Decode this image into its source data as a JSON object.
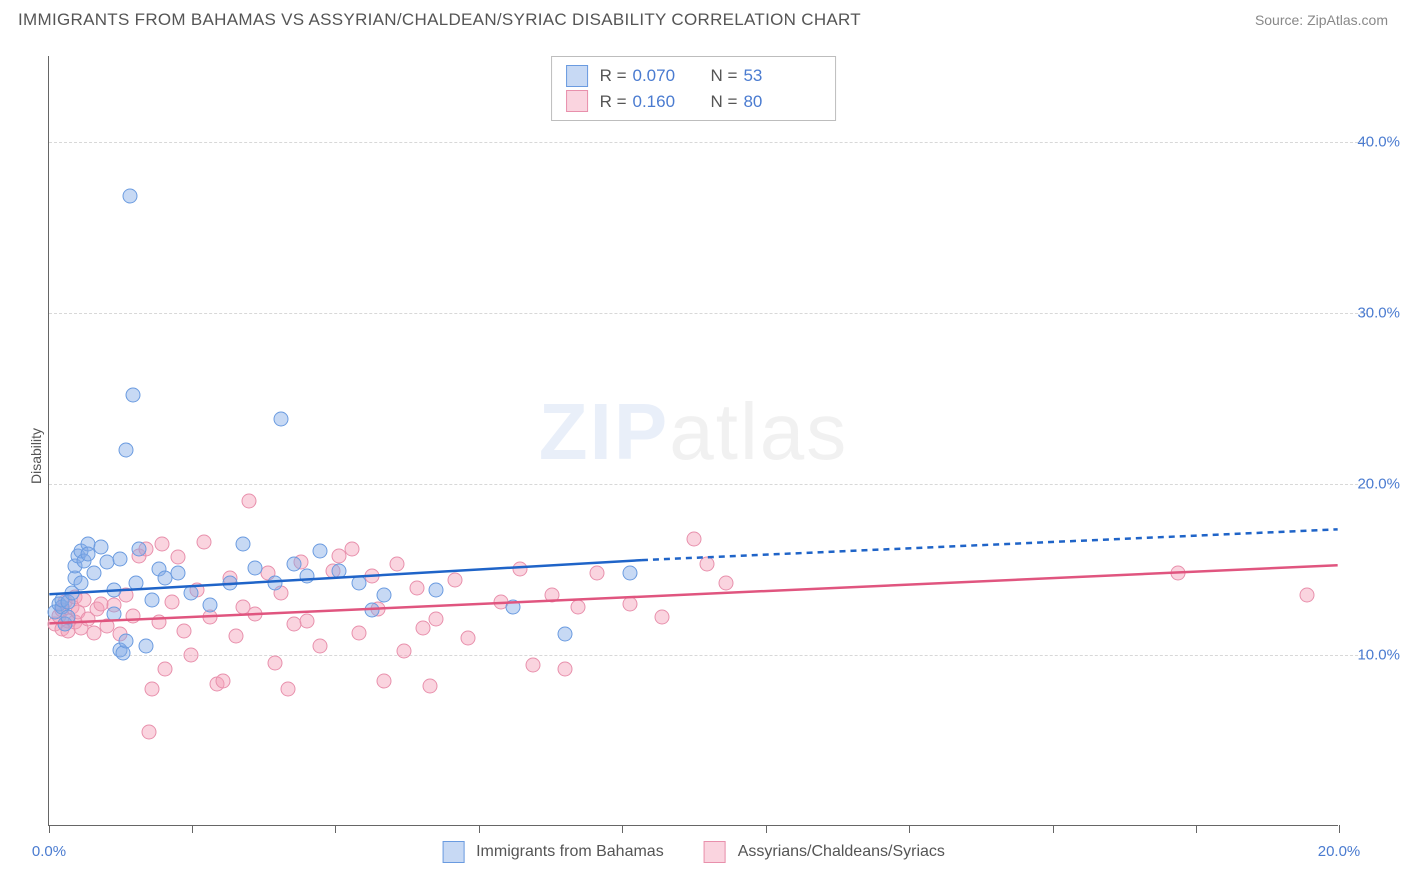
{
  "header": {
    "title": "IMMIGRANTS FROM BAHAMAS VS ASSYRIAN/CHALDEAN/SYRIAC DISABILITY CORRELATION CHART",
    "source_prefix": "Source: ",
    "source_name": "ZipAtlas.com"
  },
  "ylabel": "Disability",
  "watermark_a": "ZIP",
  "watermark_b": "atlas",
  "chart": {
    "type": "scatter-with-regression",
    "xlim": [
      0,
      20
    ],
    "ylim": [
      0,
      45
    ],
    "xticks": [
      0,
      2.22,
      4.44,
      6.67,
      8.89,
      11.11,
      13.33,
      15.56,
      17.78,
      20
    ],
    "xtick_labels": {
      "0": "0.0%",
      "20": "20.0%"
    },
    "ygrid": [
      10,
      20,
      30,
      40
    ],
    "ytick_labels": {
      "10": "10.0%",
      "20": "20.0%",
      "30": "30.0%",
      "40": "40.0%"
    },
    "grid_color": "#d8d8d8",
    "axis_color": "#666666",
    "background_color": "#ffffff",
    "series": {
      "blue": {
        "label": "Immigrants from Bahamas",
        "fill": "rgba(130,170,230,0.45)",
        "stroke": "#6a9be0",
        "line_color": "#1f64c8",
        "R": "0.070",
        "N": "53",
        "regression": {
          "x1": 0,
          "y1": 13.5,
          "x2_solid": 9.2,
          "y2_solid": 15.5,
          "x2_dash": 20,
          "y2_dash": 17.3
        },
        "points": [
          [
            0.1,
            12.5
          ],
          [
            0.15,
            13
          ],
          [
            0.2,
            12.8
          ],
          [
            0.2,
            13.2
          ],
          [
            0.25,
            11.8
          ],
          [
            0.3,
            12.2
          ],
          [
            0.3,
            13.1
          ],
          [
            0.35,
            13.6
          ],
          [
            0.4,
            14.5
          ],
          [
            0.4,
            15.2
          ],
          [
            0.45,
            15.8
          ],
          [
            0.5,
            16.1
          ],
          [
            0.5,
            14.2
          ],
          [
            0.55,
            15.5
          ],
          [
            0.6,
            16.5
          ],
          [
            0.6,
            15.9
          ],
          [
            0.7,
            14.8
          ],
          [
            0.8,
            16.3
          ],
          [
            0.9,
            15.4
          ],
          [
            1.0,
            13.8
          ],
          [
            1.0,
            12.4
          ],
          [
            1.1,
            15.6
          ],
          [
            1.1,
            10.3
          ],
          [
            1.15,
            10.1
          ],
          [
            1.25,
            36.8
          ],
          [
            1.3,
            25.2
          ],
          [
            1.2,
            22.0
          ],
          [
            1.2,
            10.8
          ],
          [
            1.35,
            14.2
          ],
          [
            1.4,
            16.2
          ],
          [
            1.5,
            10.5
          ],
          [
            1.6,
            13.2
          ],
          [
            1.7,
            15.0
          ],
          [
            1.8,
            14.5
          ],
          [
            2.0,
            14.8
          ],
          [
            2.2,
            13.6
          ],
          [
            2.5,
            12.9
          ],
          [
            2.8,
            14.2
          ],
          [
            3.0,
            16.5
          ],
          [
            3.2,
            15.1
          ],
          [
            3.5,
            14.2
          ],
          [
            3.6,
            23.8
          ],
          [
            3.8,
            15.3
          ],
          [
            4.0,
            14.6
          ],
          [
            4.2,
            16.1
          ],
          [
            4.5,
            14.9
          ],
          [
            4.8,
            14.2
          ],
          [
            5.0,
            12.6
          ],
          [
            5.2,
            13.5
          ],
          [
            6.0,
            13.8
          ],
          [
            7.2,
            12.8
          ],
          [
            8.0,
            11.2
          ],
          [
            9.0,
            14.8
          ]
        ]
      },
      "pink": {
        "label": "Assyrians/Chaldeans/Syriacs",
        "fill": "rgba(244,160,185,0.45)",
        "stroke": "#e890ac",
        "line_color": "#e0557f",
        "R": "0.160",
        "N": "80",
        "regression": {
          "x1": 0,
          "y1": 11.8,
          "x2_solid": 20,
          "y2_solid": 15.2
        },
        "points": [
          [
            0.1,
            11.8
          ],
          [
            0.15,
            12.3
          ],
          [
            0.2,
            11.5
          ],
          [
            0.2,
            12.6
          ],
          [
            0.25,
            13.1
          ],
          [
            0.3,
            12.0
          ],
          [
            0.3,
            11.4
          ],
          [
            0.35,
            12.8
          ],
          [
            0.4,
            13.4
          ],
          [
            0.4,
            11.9
          ],
          [
            0.45,
            12.5
          ],
          [
            0.5,
            11.6
          ],
          [
            0.55,
            13.2
          ],
          [
            0.6,
            12.1
          ],
          [
            0.7,
            11.3
          ],
          [
            0.75,
            12.7
          ],
          [
            0.8,
            13.0
          ],
          [
            0.9,
            11.7
          ],
          [
            1.0,
            12.9
          ],
          [
            1.1,
            11.2
          ],
          [
            1.2,
            13.5
          ],
          [
            1.3,
            12.3
          ],
          [
            1.4,
            15.8
          ],
          [
            1.5,
            16.2
          ],
          [
            1.55,
            5.5
          ],
          [
            1.6,
            8.0
          ],
          [
            1.7,
            11.9
          ],
          [
            1.75,
            16.5
          ],
          [
            1.8,
            9.2
          ],
          [
            1.9,
            13.1
          ],
          [
            2.0,
            15.7
          ],
          [
            2.1,
            11.4
          ],
          [
            2.2,
            10.0
          ],
          [
            2.3,
            13.8
          ],
          [
            2.4,
            16.6
          ],
          [
            2.5,
            12.2
          ],
          [
            2.6,
            8.3
          ],
          [
            2.7,
            8.5
          ],
          [
            2.8,
            14.5
          ],
          [
            2.9,
            11.1
          ],
          [
            3.0,
            12.8
          ],
          [
            3.1,
            19.0
          ],
          [
            3.2,
            12.4
          ],
          [
            3.4,
            14.8
          ],
          [
            3.5,
            9.5
          ],
          [
            3.6,
            13.6
          ],
          [
            3.7,
            8.0
          ],
          [
            3.8,
            11.8
          ],
          [
            3.9,
            15.4
          ],
          [
            4.0,
            12.0
          ],
          [
            4.2,
            10.5
          ],
          [
            4.4,
            14.9
          ],
          [
            4.5,
            15.8
          ],
          [
            4.7,
            16.2
          ],
          [
            4.8,
            11.3
          ],
          [
            5.0,
            14.6
          ],
          [
            5.1,
            12.7
          ],
          [
            5.2,
            8.5
          ],
          [
            5.4,
            15.3
          ],
          [
            5.5,
            10.2
          ],
          [
            5.7,
            13.9
          ],
          [
            5.8,
            11.6
          ],
          [
            5.9,
            8.2
          ],
          [
            6.0,
            12.1
          ],
          [
            6.3,
            14.4
          ],
          [
            6.5,
            11.0
          ],
          [
            7.0,
            13.1
          ],
          [
            7.3,
            15.0
          ],
          [
            7.5,
            9.4
          ],
          [
            7.8,
            13.5
          ],
          [
            8.0,
            9.2
          ],
          [
            8.2,
            12.8
          ],
          [
            8.5,
            14.8
          ],
          [
            9.0,
            13.0
          ],
          [
            9.5,
            12.2
          ],
          [
            10.0,
            16.8
          ],
          [
            10.2,
            15.3
          ],
          [
            10.5,
            14.2
          ],
          [
            17.5,
            14.8
          ],
          [
            19.5,
            13.5
          ]
        ]
      }
    }
  },
  "legend_top": {
    "r_label": "R =",
    "n_label": "N ="
  }
}
